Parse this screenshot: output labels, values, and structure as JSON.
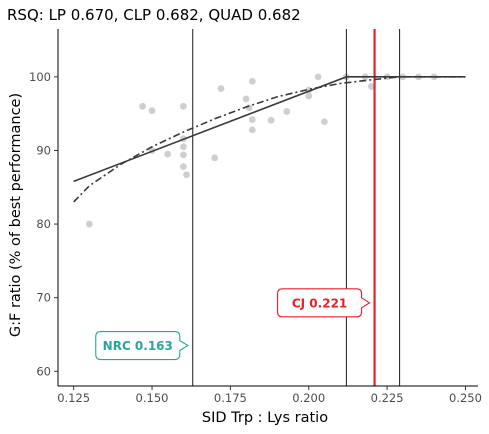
{
  "chart_data": {
    "type": "scatter",
    "title": "RSQ: LP 0.670, CLP 0.682, QUAD 0.682",
    "xlabel": "SID Trp : Lys ratio",
    "ylabel": "G:F ratio (% of best performance)",
    "xlim": [
      0.12,
      0.254
    ],
    "ylim": [
      58,
      106.5
    ],
    "x_ticks": [
      "0.125",
      "0.150",
      "0.175",
      "0.200",
      "0.225",
      "0.250"
    ],
    "x_tick_values": [
      0.125,
      0.15,
      0.175,
      0.2,
      0.225,
      0.25
    ],
    "y_ticks": [
      "60",
      "70",
      "80",
      "90",
      "100"
    ],
    "y_tick_values": [
      60,
      70,
      80,
      90,
      100
    ],
    "grid": false,
    "points": [
      {
        "x": 0.13,
        "y": 80
      },
      {
        "x": 0.147,
        "y": 96
      },
      {
        "x": 0.15,
        "y": 95.4
      },
      {
        "x": 0.15,
        "y": 90
      },
      {
        "x": 0.155,
        "y": 89.5
      },
      {
        "x": 0.16,
        "y": 96
      },
      {
        "x": 0.16,
        "y": 91.6
      },
      {
        "x": 0.16,
        "y": 90.5
      },
      {
        "x": 0.16,
        "y": 89.4
      },
      {
        "x": 0.16,
        "y": 87.8
      },
      {
        "x": 0.161,
        "y": 86.7
      },
      {
        "x": 0.17,
        "y": 89
      },
      {
        "x": 0.172,
        "y": 98.4
      },
      {
        "x": 0.18,
        "y": 97
      },
      {
        "x": 0.181,
        "y": 95.8
      },
      {
        "x": 0.182,
        "y": 99.4
      },
      {
        "x": 0.182,
        "y": 94.2
      },
      {
        "x": 0.182,
        "y": 92.8
      },
      {
        "x": 0.188,
        "y": 94.1
      },
      {
        "x": 0.193,
        "y": 95.3
      },
      {
        "x": 0.2,
        "y": 98.2
      },
      {
        "x": 0.2,
        "y": 97.4
      },
      {
        "x": 0.203,
        "y": 100
      },
      {
        "x": 0.205,
        "y": 93.9
      },
      {
        "x": 0.212,
        "y": 100
      },
      {
        "x": 0.218,
        "y": 100
      },
      {
        "x": 0.22,
        "y": 98.7
      },
      {
        "x": 0.225,
        "y": 100
      },
      {
        "x": 0.23,
        "y": 100
      },
      {
        "x": 0.235,
        "y": 100
      },
      {
        "x": 0.24,
        "y": 100
      }
    ],
    "series": [
      {
        "style": "solid",
        "x": [
          0.125,
          0.212,
          0.25
        ],
        "y": [
          85.8,
          100,
          100
        ]
      },
      {
        "style": "dashdot",
        "x": [
          0.125,
          0.13,
          0.14,
          0.15,
          0.16,
          0.17,
          0.18,
          0.19,
          0.2,
          0.21,
          0.22,
          0.229,
          0.25
        ],
        "y": [
          83,
          85.2,
          88.1,
          90.5,
          92.5,
          94.3,
          95.9,
          97.3,
          98.3,
          99.1,
          99.6,
          100,
          100
        ]
      }
    ],
    "vertical_lines": [
      {
        "x": 0.163,
        "color": "#000000"
      },
      {
        "x": 0.212,
        "color": "#000000"
      },
      {
        "x": 0.221,
        "color": "#e8202a"
      },
      {
        "x": 0.229,
        "color": "#000000"
      }
    ],
    "annotations": [
      {
        "text": "NRC 0.163",
        "color": "#2aa59a",
        "x": 0.163,
        "y": 63.5
      },
      {
        "text": "CJ 0.221",
        "color": "#e8202a",
        "x": 0.221,
        "y": 69.3
      }
    ]
  }
}
